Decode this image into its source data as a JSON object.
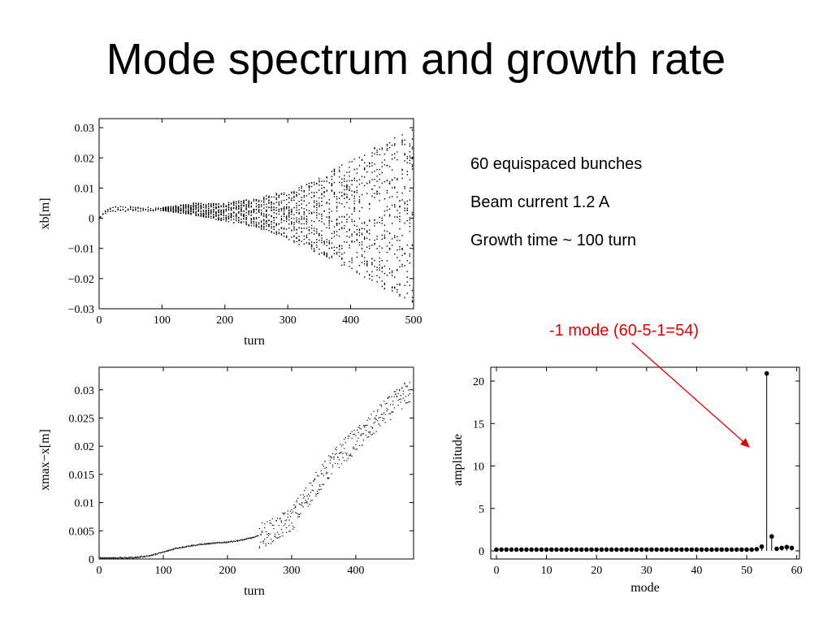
{
  "slide": {
    "title": "Mode spectrum and growth rate",
    "info_lines": [
      "60 equispaced bunches",
      "Beam current 1.2 A",
      "Growth time ~ 100 turn"
    ],
    "annotation": "-1 mode (60-5-1=54)",
    "annotation_color": "#e00000"
  },
  "chart_data": [
    {
      "type": "scatter",
      "xlabel": "turn",
      "ylabel": "xb[m]",
      "xlim": [
        0,
        500
      ],
      "ylim": [
        -0.03,
        0.033
      ],
      "xticks": [
        "0",
        "100",
        "200",
        "300",
        "400",
        "500"
      ],
      "yticks": [
        "0.03",
        "0.02",
        "0.01",
        "0",
        "−0.01",
        "−0.02",
        "−0.03"
      ],
      "description_of_data": "60 bunch offsets per turn, envelope growing",
      "envelope": {
        "turn": [
          0,
          10,
          20,
          40,
          100,
          150,
          200,
          250,
          300,
          350,
          400,
          450,
          500
        ],
        "center": [
          0,
          0.002,
          0.003,
          0.003,
          0.003,
          0.003,
          0.002,
          0.002,
          0.001,
          0.001,
          0.001,
          0.001,
          0.001
        ],
        "half_width": [
          0,
          0.0005,
          0.001,
          0.001,
          0.0005,
          0.002,
          0.003,
          0.005,
          0.008,
          0.013,
          0.018,
          0.024,
          0.03
        ]
      },
      "grid": false
    },
    {
      "type": "scatter",
      "xlabel": "turn",
      "ylabel": "xmax−x[m]",
      "xlim": [
        0,
        490
      ],
      "ylim": [
        0,
        0.034
      ],
      "xticks": [
        "0",
        "100",
        "200",
        "300",
        "400"
      ],
      "yticks": [
        "0.03",
        "0.025",
        "0.02",
        "0.015",
        "0.01",
        "0.005",
        "0"
      ],
      "series": [
        {
          "x": [
            0,
            20,
            40,
            60,
            80,
            100,
            120,
            140,
            160,
            180,
            200,
            220,
            240,
            260,
            280,
            300,
            320,
            340,
            360,
            380,
            400,
            420,
            440,
            460,
            480
          ],
          "y": [
            0.0002,
            0.0002,
            0.0002,
            0.0003,
            0.0006,
            0.0012,
            0.0019,
            0.0023,
            0.0026,
            0.0028,
            0.003,
            0.0033,
            0.0038,
            0.0045,
            0.0055,
            0.007,
            0.0105,
            0.0135,
            0.0165,
            0.019,
            0.021,
            0.023,
            0.0255,
            0.0275,
            0.0295
          ]
        }
      ],
      "grid": false
    },
    {
      "type": "stem",
      "xlabel": "mode",
      "ylabel": "amplitude",
      "xlim": [
        0,
        60
      ],
      "ylim": [
        0,
        21
      ],
      "xticks": [
        "0",
        "10",
        "20",
        "30",
        "40",
        "50",
        "60"
      ],
      "yticks": [
        "20",
        "15",
        "10",
        "5",
        "0"
      ],
      "x": [
        0,
        1,
        2,
        3,
        4,
        5,
        6,
        7,
        8,
        9,
        10,
        11,
        12,
        13,
        14,
        15,
        16,
        17,
        18,
        19,
        20,
        21,
        22,
        23,
        24,
        25,
        26,
        27,
        28,
        29,
        30,
        31,
        32,
        33,
        34,
        35,
        36,
        37,
        38,
        39,
        40,
        41,
        42,
        43,
        44,
        45,
        46,
        47,
        48,
        49,
        50,
        51,
        52,
        53,
        54,
        55,
        56,
        57,
        58,
        59
      ],
      "values": [
        0.15,
        0.15,
        0.15,
        0.15,
        0.15,
        0.15,
        0.15,
        0.15,
        0.15,
        0.15,
        0.15,
        0.15,
        0.15,
        0.15,
        0.15,
        0.15,
        0.15,
        0.15,
        0.15,
        0.15,
        0.15,
        0.15,
        0.15,
        0.15,
        0.15,
        0.15,
        0.15,
        0.15,
        0.15,
        0.15,
        0.15,
        0.15,
        0.15,
        0.15,
        0.15,
        0.15,
        0.15,
        0.15,
        0.15,
        0.15,
        0.15,
        0.15,
        0.15,
        0.15,
        0.15,
        0.15,
        0.15,
        0.15,
        0.15,
        0.15,
        0.15,
        0.15,
        0.2,
        0.5,
        20.9,
        1.7,
        0.25,
        0.35,
        0.45,
        0.35
      ],
      "grid": false
    }
  ]
}
